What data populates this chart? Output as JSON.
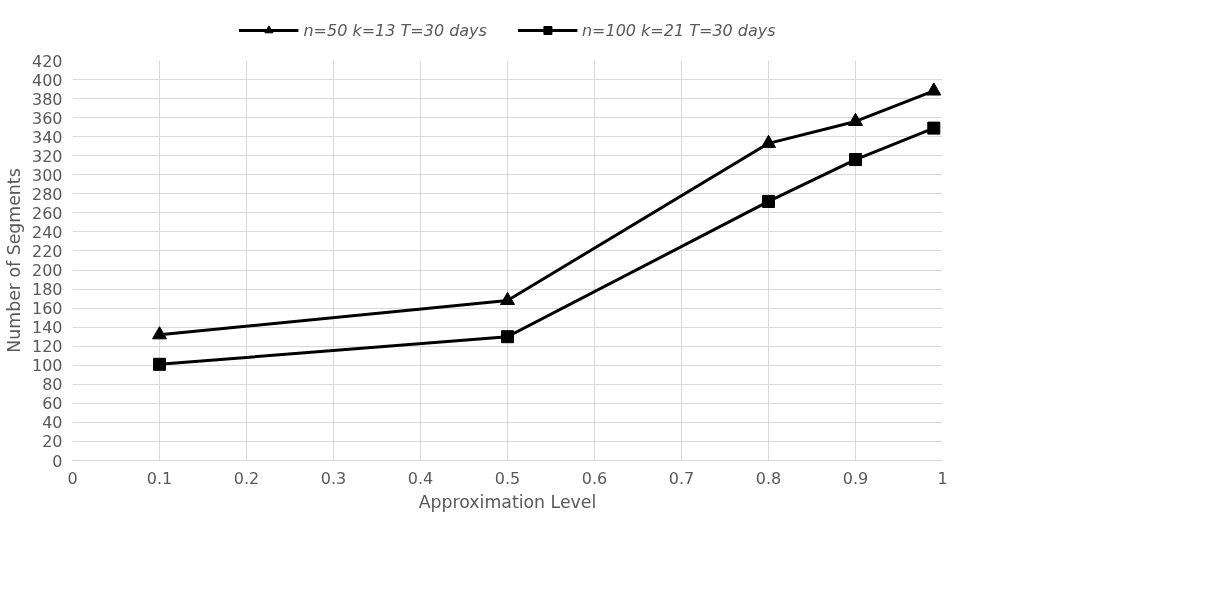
{
  "chart_data": {
    "type": "line",
    "xlabel": "Approximation Level",
    "ylabel": "Number of Segments",
    "x": [
      0.1,
      0.5,
      0.8,
      0.9,
      0.99
    ],
    "series": [
      {
        "name": "n=50 k=13 T=30 days",
        "color": "#000000",
        "marker": "triangle",
        "values": [
          132,
          168,
          333,
          356,
          388
        ]
      },
      {
        "name": "n=100 k=21 T=30 days",
        "color": "#000000",
        "marker": "square",
        "values": [
          101,
          130,
          272,
          316,
          349
        ]
      }
    ],
    "xlim": [
      0,
      1
    ],
    "xticks": [
      0,
      0.1,
      0.2,
      0.3,
      0.4,
      0.5,
      0.6,
      0.7,
      0.8,
      0.9,
      1
    ],
    "ylim": [
      0,
      420
    ],
    "yticks": [
      0,
      20,
      40,
      60,
      80,
      100,
      120,
      140,
      160,
      180,
      200,
      220,
      240,
      260,
      280,
      300,
      320,
      340,
      360,
      380,
      400,
      420
    ],
    "grid": true,
    "legend": "top",
    "line_style": "solid"
  }
}
